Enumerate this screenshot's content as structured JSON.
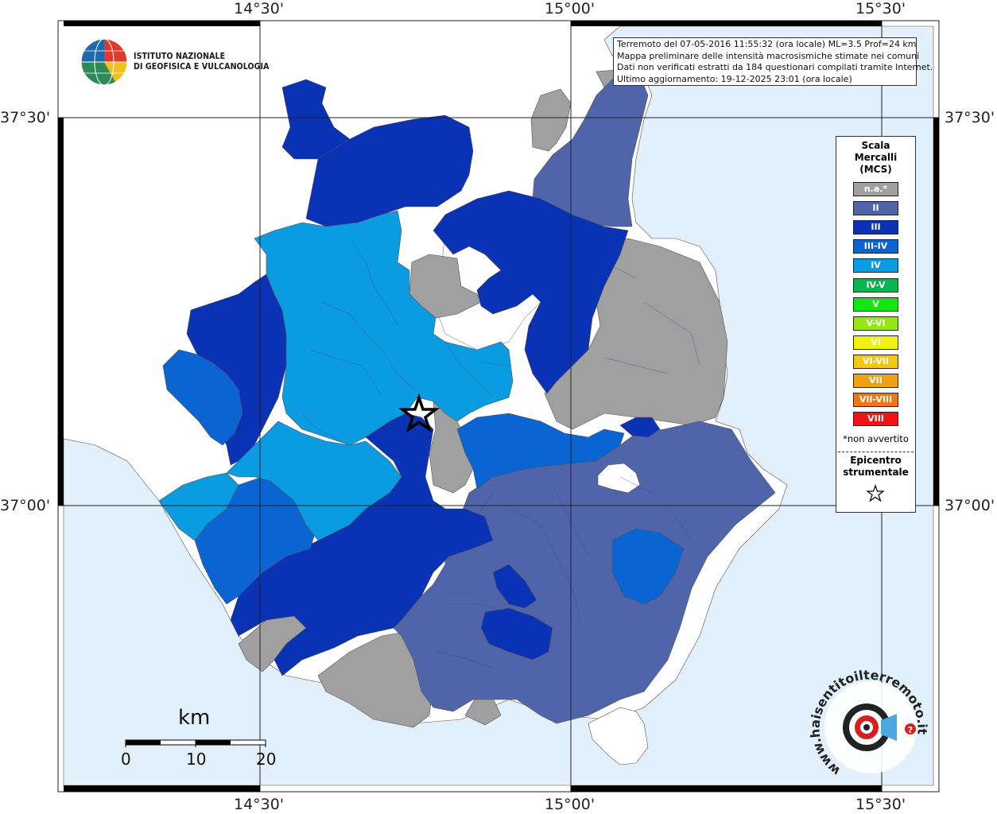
{
  "institute": {
    "name_line1": "ISTITUTO NAZIONALE",
    "name_line2": "DI GEOFISICA E VULCANOLOGIA"
  },
  "info": {
    "line1": "Terremoto del 07-05-2016 11:55:32 (ora locale) ML=3.5 Prof=24 km",
    "line2": "Mappa preliminare delle intensità macrosismiche stimate nei comuni",
    "line3": "Dati non verificati estratti da 184 questionari compilati tramite Internet.",
    "line4": "Ultimo aggiornamento: 19-12-2025 23:01 (ora locale)"
  },
  "graticule": {
    "lon_top": [
      "14°30'",
      "15°00'",
      "15°30'"
    ],
    "lon_bottom": [
      "14°30'",
      "15°00'",
      "15°30'"
    ],
    "lat_left": [
      "37°30'",
      "37°00'"
    ],
    "lat_right": [
      "37°30'",
      "37°00'"
    ]
  },
  "legend": {
    "title_line1": "Scala",
    "title_line2": "Mercalli",
    "title_line3": "(MCS)",
    "classes": [
      {
        "label": "n.a.*",
        "color": "#a0a0a0"
      },
      {
        "label": "II",
        "color": "#5064aa"
      },
      {
        "label": "III",
        "color": "#0a32b4"
      },
      {
        "label": "III-IV",
        "color": "#0a64d2"
      },
      {
        "label": "IV",
        "color": "#0a9be1"
      },
      {
        "label": "IV-V",
        "color": "#0ab450"
      },
      {
        "label": "V",
        "color": "#14e614"
      },
      {
        "label": "V-VI",
        "color": "#96e614"
      },
      {
        "label": "VI",
        "color": "#f0f014"
      },
      {
        "label": "VI-VII",
        "color": "#f0c814"
      },
      {
        "label": "VII",
        "color": "#f0a014"
      },
      {
        "label": "VII-VIII",
        "color": "#f07814"
      },
      {
        "label": "VIII",
        "color": "#f01414"
      }
    ],
    "note": "*non avvertito",
    "epicenter_line1": "Epicentro",
    "epicenter_line2": "strumentale"
  },
  "scale_bar": {
    "unit": "km",
    "labels": [
      "0",
      "10",
      "20"
    ]
  },
  "colors": {
    "sea": "#e1f0fb",
    "land_outside": "#ffffff",
    "na": "#a0a0a0",
    "ii": "#5064aa",
    "iii": "#0a32b4",
    "iii_iv": "#0a64d2",
    "iv": "#0a9be1"
  },
  "watermark": {
    "text": "www.haisentitoilterremoto.it"
  }
}
